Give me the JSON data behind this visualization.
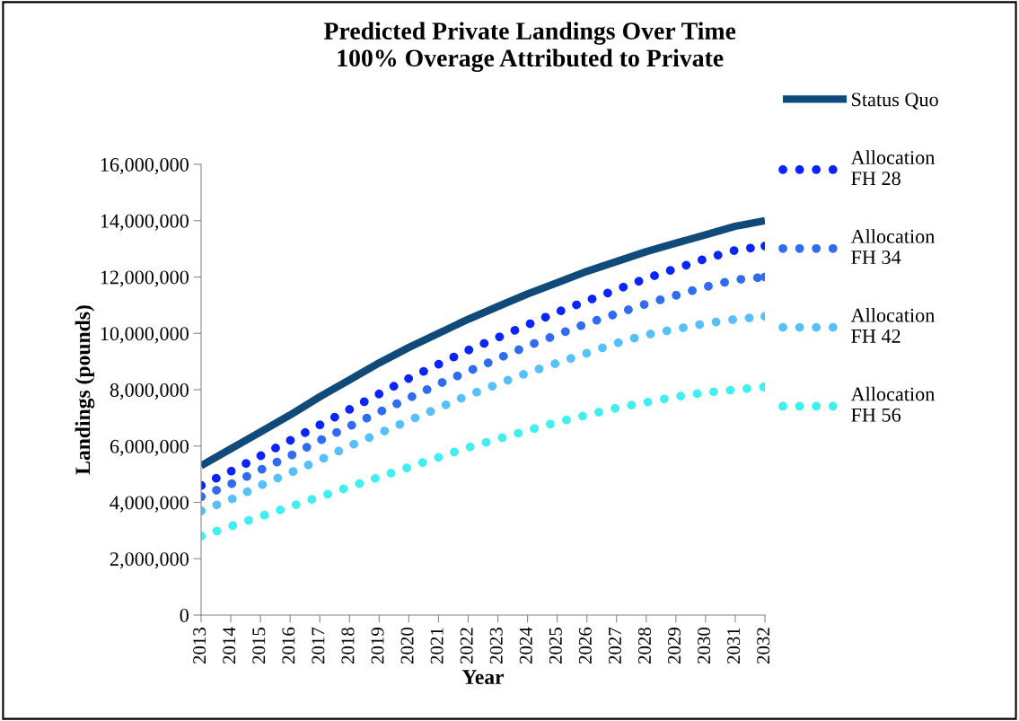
{
  "chart_data": {
    "type": "line",
    "title": "Predicted Private Landings Over Time\n100% Overage Attributed to Private",
    "xlabel": "Year",
    "ylabel": "Landings (pounds)",
    "categories": [
      "2013",
      "2014",
      "2015",
      "2016",
      "2017",
      "2018",
      "2019",
      "2020",
      "2021",
      "2022",
      "2023",
      "2024",
      "2025",
      "2026",
      "2027",
      "2028",
      "2029",
      "2030",
      "2031",
      "2032"
    ],
    "series": [
      {
        "name": "Status Quo",
        "color": "#0f4a7a",
        "line_style": "solid",
        "values": [
          5300000,
          5900000,
          6500000,
          7100000,
          7750000,
          8350000,
          8950000,
          9500000,
          10000000,
          10500000,
          10950000,
          11400000,
          11800000,
          12200000,
          12550000,
          12900000,
          13200000,
          13500000,
          13800000,
          14000000
        ]
      },
      {
        "name": "Allocation\nFH 28",
        "color": "#0a24ff",
        "line_style": "dotted",
        "values": [
          4600000,
          5100000,
          5650000,
          6200000,
          6750000,
          7300000,
          7850000,
          8400000,
          8900000,
          9400000,
          9850000,
          10300000,
          10750000,
          11150000,
          11550000,
          11950000,
          12300000,
          12650000,
          12950000,
          13100000
        ]
      },
      {
        "name": "Allocation\nFH 34",
        "color": "#2f6cf0",
        "line_style": "dotted",
        "values": [
          4200000,
          4650000,
          5150000,
          5650000,
          6200000,
          6700000,
          7200000,
          7700000,
          8200000,
          8650000,
          9100000,
          9550000,
          9950000,
          10350000,
          10700000,
          11050000,
          11350000,
          11650000,
          11900000,
          12000000
        ]
      },
      {
        "name": "Allocation\nFH 42",
        "color": "#58c0f8",
        "line_style": "dotted",
        "values": [
          3700000,
          4100000,
          4600000,
          5050000,
          5500000,
          6000000,
          6450000,
          6900000,
          7350000,
          7800000,
          8200000,
          8600000,
          8950000,
          9300000,
          9650000,
          9950000,
          10150000,
          10350000,
          10500000,
          10600000
        ]
      },
      {
        "name": "Allocation\nFH 56",
        "color": "#40f0f0",
        "line_style": "dotted",
        "values": [
          2800000,
          3150000,
          3500000,
          3850000,
          4200000,
          4550000,
          4900000,
          5250000,
          5600000,
          5950000,
          6250000,
          6550000,
          6850000,
          7100000,
          7350000,
          7550000,
          7750000,
          7900000,
          8000000,
          8100000
        ]
      }
    ],
    "ylim": [
      0,
      16000000
    ],
    "yticks": [
      {
        "value": 0,
        "label": "0"
      },
      {
        "value": 2000000,
        "label": "2,000,000"
      },
      {
        "value": 4000000,
        "label": "4,000,000"
      },
      {
        "value": 6000000,
        "label": "6,000,000"
      },
      {
        "value": 8000000,
        "label": "8,000,000"
      },
      {
        "value": 10000000,
        "label": "10,000,000"
      },
      {
        "value": 12000000,
        "label": "12,000,000"
      },
      {
        "value": 14000000,
        "label": "14,000,000"
      },
      {
        "value": 16000000,
        "label": "16,000,000"
      }
    ],
    "grid": false,
    "legend": "right",
    "marker": "none"
  }
}
